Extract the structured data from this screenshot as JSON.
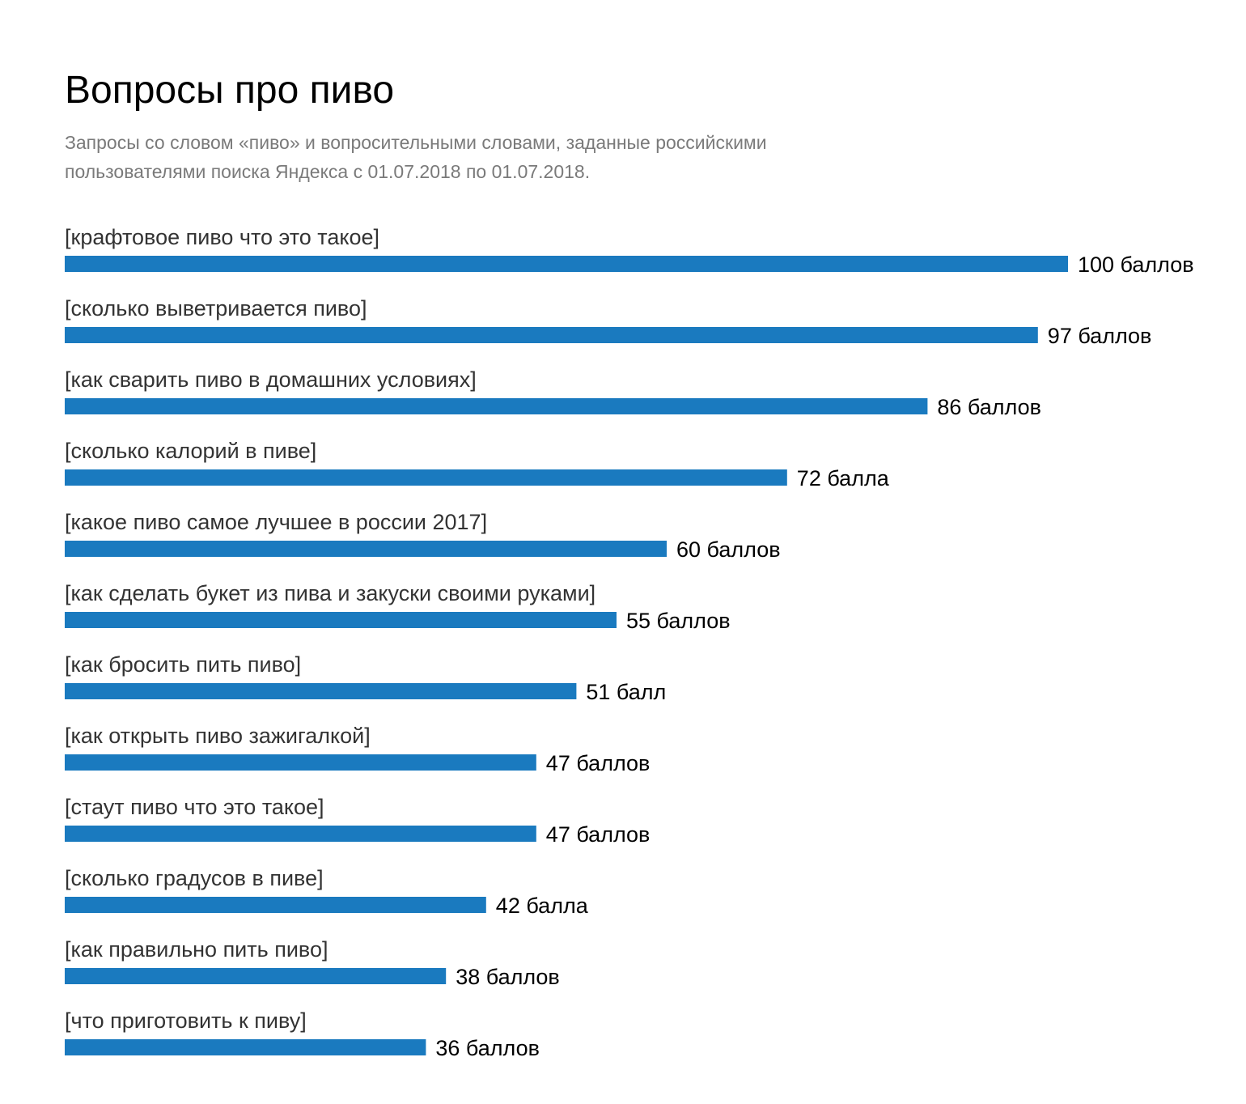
{
  "colors": {
    "bar": "#1a7abf",
    "title": "#000000",
    "subtitle": "#7a7a7a",
    "category_text": "#333333",
    "value_text": "#000000"
  },
  "chart_data": {
    "type": "bar",
    "orientation": "horizontal",
    "title": "Вопросы про пиво",
    "subtitle_lines": [
      "Запросы со словом «пиво» и вопросительными словами, заданные российскими",
      "пользователями поиска Яндекса с 01.07.2018 по 01.07.2018."
    ],
    "categories": [
      "[крафтовое пиво что это такое]",
      "[сколько выветривается пиво]",
      "[как сварить пиво в домашних условиях]",
      "[сколько калорий в пиве]",
      "[какое пиво самое лучшее в россии 2017]",
      "[как сделать букет из пива и закуски своими руками]",
      "[как бросить пить пиво]",
      "[как открыть пиво зажигалкой]",
      "[стаут пиво что это такое]",
      "[сколько градусов в пиве]",
      "[как правильно пить пиво]",
      "[что приготовить к пиву]"
    ],
    "values": [
      100,
      97,
      86,
      72,
      60,
      55,
      51,
      47,
      47,
      42,
      38,
      36
    ],
    "value_labels": [
      "100 баллов",
      "97 баллов",
      "86 баллов",
      "72 балла",
      "60 баллов",
      "55 баллов",
      "51 балл",
      "47 баллов",
      "47 баллов",
      "42 балла",
      "38 баллов",
      "36 баллов"
    ],
    "xlim": [
      0,
      100
    ],
    "grid": false,
    "legend": "none"
  }
}
